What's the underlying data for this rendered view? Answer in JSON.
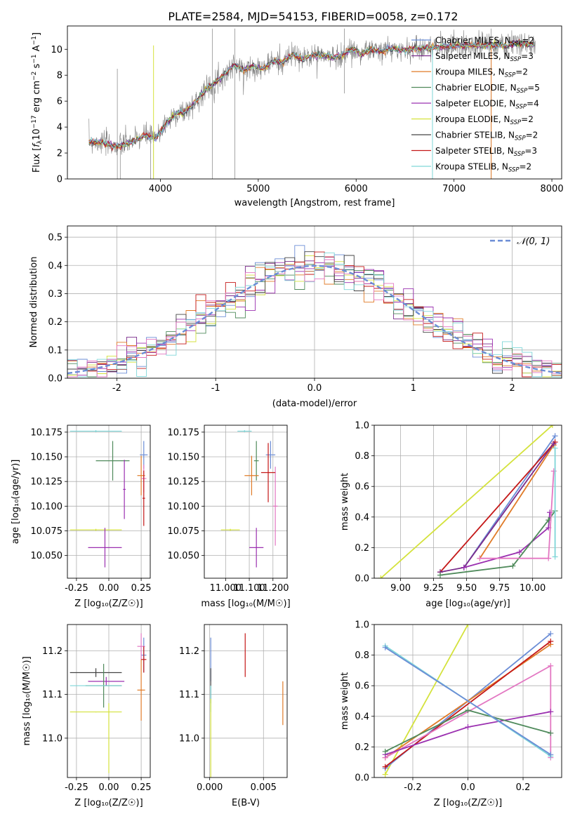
{
  "figure": {
    "title": "PLATE=2584, MJD=54153, FIBERID=0058, z=0.172"
  },
  "chart_data": [
    {
      "id": "spectrum",
      "type": "line",
      "title": "PLATE=2584, MJD=54153, FIBERID=0058, z=0.172",
      "xlabel": "wavelength [Angstrom, rest frame]",
      "ylabel": "Flux [f_λ 10^-17 erg cm^-2 s^-1 A^-1]",
      "xlim": [
        3050,
        8100
      ],
      "ylim": [
        0,
        11.8
      ],
      "xticks": [
        4000,
        5000,
        6000,
        7000,
        8000
      ],
      "yticks": [
        0,
        2,
        4,
        6,
        8,
        10
      ],
      "grid": false,
      "legend_position": "right",
      "legend": [
        {
          "label": "Chabrier MILES, N_SSP=2",
          "color": "#6b8dd6"
        },
        {
          "label": "Salpeter MILES, N_SSP=3",
          "color": "#7b2c8c"
        },
        {
          "label": "Kroupa MILES, N_SSP=2",
          "color": "#e07b28"
        },
        {
          "label": "Chabrier ELODIE, N_SSP=5",
          "color": "#4f8a5b"
        },
        {
          "label": "Salpeter ELODIE, N_SSP=4",
          "color": "#9b30b0"
        },
        {
          "label": "Kroupa ELODIE, N_SSP=2",
          "color": "#d4e23c"
        },
        {
          "label": "Chabrier STELIB, N_SSP=2",
          "color": "#444444"
        },
        {
          "label": "Salpeter STELIB, N_SSP=3",
          "color": "#c41818"
        },
        {
          "label": "Kroupa STELIB, N_SSP=2",
          "color": "#7fd6d8"
        }
      ],
      "continuum": [
        [
          3270,
          2.9
        ],
        [
          3400,
          2.8
        ],
        [
          3500,
          2.6
        ],
        [
          3560,
          2.5
        ],
        [
          3650,
          2.7
        ],
        [
          3750,
          3.0
        ],
        [
          3850,
          3.4
        ],
        [
          3950,
          3.1
        ],
        [
          4050,
          4.2
        ],
        [
          4150,
          5.0
        ],
        [
          4250,
          5.2
        ],
        [
          4350,
          5.8
        ],
        [
          4450,
          6.8
        ],
        [
          4550,
          7.4
        ],
        [
          4650,
          8.0
        ],
        [
          4750,
          8.8
        ],
        [
          4850,
          8.4
        ],
        [
          4950,
          8.7
        ],
        [
          5050,
          8.5
        ],
        [
          5150,
          9.1
        ],
        [
          5250,
          9.0
        ],
        [
          5350,
          9.6
        ],
        [
          5450,
          9.2
        ],
        [
          5550,
          9.6
        ],
        [
          5650,
          9.5
        ],
        [
          5750,
          9.4
        ],
        [
          5850,
          9.5
        ],
        [
          5950,
          10.0
        ],
        [
          6050,
          9.7
        ],
        [
          6150,
          10.0
        ],
        [
          6250,
          9.8
        ],
        [
          6350,
          10.1
        ],
        [
          6450,
          9.9
        ],
        [
          6550,
          10.0
        ],
        [
          6650,
          10.1
        ],
        [
          6750,
          10.1
        ],
        [
          6850,
          10.2
        ],
        [
          6950,
          10.2
        ],
        [
          7050,
          10.3
        ],
        [
          7150,
          10.3
        ],
        [
          7250,
          10.3
        ],
        [
          7350,
          10.3
        ],
        [
          7450,
          10.3
        ],
        [
          7550,
          10.3
        ],
        [
          7650,
          10.4
        ],
        [
          7750,
          10.4
        ],
        [
          7830,
          10.4
        ]
      ]
    },
    {
      "id": "residuals",
      "type": "line",
      "xlabel": "(data-model)/error",
      "ylabel": "Normed distribution",
      "xlim": [
        -2.5,
        2.5
      ],
      "ylim": [
        0,
        0.54
      ],
      "xticks": [
        -2,
        -1,
        0,
        1,
        2
      ],
      "yticks": [
        0.0,
        0.1,
        0.2,
        0.3,
        0.4,
        0.5
      ],
      "grid": true,
      "legend_position": "top-right",
      "legend": [
        {
          "label": "𝒩(0, 1)",
          "color": "#6b8dd6"
        }
      ],
      "bin_width": 0.1
    },
    {
      "id": "age-vs-Z",
      "type": "scatter",
      "xlabel": "Z [log₁₀(Z/Z☉)]",
      "ylabel": "age  [log₁₀(age/yr)]",
      "xlim": [
        -0.32,
        0.32
      ],
      "ylim": [
        10.027,
        10.182
      ],
      "xticks": [
        -0.25,
        0.0,
        0.25
      ],
      "yticks": [
        10.05,
        10.075,
        10.1,
        10.125,
        10.15,
        10.175
      ],
      "grid": true,
      "points": [
        {
          "x": 0.27,
          "y": 10.152,
          "xerr": 0.03,
          "yerr": 0.014,
          "color": "#6b8dd6"
        },
        {
          "x": 0.03,
          "y": 10.146,
          "xerr": 0.13,
          "yerr": 0.02,
          "color": "#4f8a5b"
        },
        {
          "x": 0.25,
          "y": 10.131,
          "xerr": 0.03,
          "yerr": 0.02,
          "color": "#e07b28"
        },
        {
          "x": 0.27,
          "y": 10.128,
          "xerr": 0.02,
          "yerr": 0.014,
          "color": "#e377c2"
        },
        {
          "x": 0.12,
          "y": 10.117,
          "xerr": 0.01,
          "yerr": 0.03,
          "color": "#9b30b0"
        },
        {
          "x": 0.27,
          "y": 10.108,
          "xerr": 0.01,
          "yerr": 0.028,
          "color": "#c41818"
        },
        {
          "x": -0.1,
          "y": 10.176,
          "xerr": 0.2,
          "yerr": 0.001,
          "color": "#7fd6d8"
        },
        {
          "x": -0.1,
          "y": 10.076,
          "xerr": 0.2,
          "yerr": 0.001,
          "color": "#d4e23c"
        },
        {
          "x": -0.03,
          "y": 10.058,
          "xerr": 0.13,
          "yerr": 0.02,
          "color": "#9b30b0"
        }
      ]
    },
    {
      "id": "age-vs-mass",
      "type": "scatter",
      "xlabel": "mass [log₁₀(M/M☉)]",
      "ylabel": "",
      "xlim": [
        10.91,
        11.26
      ],
      "ylim": [
        10.027,
        10.182
      ],
      "xticks": [
        11.0,
        11.1,
        11.2
      ],
      "yticks": [
        10.05,
        10.075,
        10.1,
        10.125,
        10.15,
        10.175
      ],
      "grid": true,
      "points": [
        {
          "x": 11.19,
          "y": 10.152,
          "xerr": 0.02,
          "yerr": 0.014,
          "color": "#6b8dd6"
        },
        {
          "x": 11.13,
          "y": 10.146,
          "xerr": 0.01,
          "yerr": 0.02,
          "color": "#4f8a5b"
        },
        {
          "x": 11.11,
          "y": 10.131,
          "xerr": 0.03,
          "yerr": 0.02,
          "color": "#e07b28"
        },
        {
          "x": 11.21,
          "y": 10.1,
          "xerr": 0.01,
          "yerr": 0.04,
          "color": "#e377c2"
        },
        {
          "x": 11.18,
          "y": 10.134,
          "xerr": 0.03,
          "yerr": 0.03,
          "color": "#c41818"
        },
        {
          "x": 11.13,
          "y": 10.058,
          "xerr": 0.03,
          "yerr": 0.02,
          "color": "#9b30b0"
        },
        {
          "x": 11.08,
          "y": 10.176,
          "xerr": 0.03,
          "yerr": 0.001,
          "color": "#7fd6d8"
        },
        {
          "x": 11.02,
          "y": 10.076,
          "xerr": 0.04,
          "yerr": 0.001,
          "color": "#d4e23c"
        }
      ]
    },
    {
      "id": "mass-weight-vs-age",
      "type": "line",
      "xlabel": "age  [log₁₀(age/yr)]",
      "ylabel": "mass weight",
      "xlim": [
        8.8,
        10.22
      ],
      "ylim": [
        0,
        1.0
      ],
      "xticks": [
        9.0,
        9.25,
        9.5,
        9.75,
        10.0
      ],
      "yticks": [
        0.0,
        0.2,
        0.4,
        0.6,
        0.8,
        1.0
      ],
      "grid": true,
      "series": [
        {
          "color": "#d4e23c",
          "points": [
            [
              8.85,
              0.0
            ],
            [
              10.15,
              1.0
            ]
          ]
        },
        {
          "color": "#6b8dd6",
          "points": [
            [
              9.48,
              0.07
            ],
            [
              10.17,
              0.93
            ]
          ]
        },
        {
          "color": "#e07b28",
          "points": [
            [
              9.6,
              0.13
            ],
            [
              10.16,
              0.87
            ]
          ]
        },
        {
          "color": "#c41818",
          "points": [
            [
              9.3,
              0.04
            ],
            [
              10.17,
              0.89
            ]
          ]
        },
        {
          "color": "#7b2c8c",
          "points": [
            [
              9.3,
              0.04
            ],
            [
              9.48,
              0.07
            ],
            [
              10.16,
              0.88
            ]
          ]
        },
        {
          "color": "#9b30b0",
          "points": [
            [
              9.48,
              0.07
            ],
            [
              9.9,
              0.17
            ],
            [
              10.12,
              0.33
            ],
            [
              10.13,
              0.43
            ]
          ]
        },
        {
          "color": "#4f8a5b",
          "points": [
            [
              9.3,
              0.02
            ],
            [
              9.85,
              0.08
            ],
            [
              10.12,
              0.38
            ],
            [
              10.17,
              0.44
            ]
          ]
        },
        {
          "color": "#e377c2",
          "points": [
            [
              9.6,
              0.13
            ],
            [
              10.12,
              0.13
            ],
            [
              10.16,
              0.7
            ]
          ]
        },
        {
          "color": "#7fd6d8",
          "points": [
            [
              10.17,
              0.14
            ],
            [
              10.17,
              0.85
            ]
          ]
        }
      ]
    },
    {
      "id": "mass-vs-Z",
      "type": "scatter",
      "xlabel": "Z [log₁₀(Z/Z☉)]",
      "ylabel": "mass [log₁₀(M/M☉)]",
      "xlim": [
        -0.32,
        0.32
      ],
      "ylim": [
        10.91,
        11.26
      ],
      "xticks": [
        -0.25,
        0.0,
        0.25
      ],
      "yticks": [
        11.0,
        11.1,
        11.2
      ],
      "grid": true,
      "points": [
        {
          "x": 0.27,
          "y": 11.19,
          "xerr": 0.02,
          "yerr": 0.04,
          "color": "#6b8dd6"
        },
        {
          "x": 0.25,
          "y": 11.21,
          "xerr": 0.03,
          "yerr": 0.03,
          "color": "#e377c2"
        },
        {
          "x": 0.27,
          "y": 11.18,
          "xerr": 0.02,
          "yerr": 0.03,
          "color": "#c41818"
        },
        {
          "x": 0.25,
          "y": 11.11,
          "xerr": 0.03,
          "yerr": 0.07,
          "color": "#e07b28"
        },
        {
          "x": -0.1,
          "y": 11.15,
          "xerr": 0.2,
          "yerr": 0.01,
          "color": "#444444"
        },
        {
          "x": -0.02,
          "y": 11.13,
          "xerr": 0.14,
          "yerr": 0.01,
          "color": "#9b30b0"
        },
        {
          "x": -0.04,
          "y": 11.12,
          "xerr": 0.14,
          "yerr": 0.05,
          "color": "#4f8a5b"
        },
        {
          "x": -0.1,
          "y": 11.12,
          "xerr": 0.2,
          "yerr": 0.001,
          "color": "#7fd6d8"
        },
        {
          "x": -0.1,
          "y": 11.06,
          "xerr": 0.2,
          "yerr": 0.001,
          "color": "#d4e23c"
        },
        {
          "x": 0.0,
          "y": 11.0,
          "xerr": 0.001,
          "yerr": 0.08,
          "color": "#d4e23c"
        }
      ]
    },
    {
      "id": "mass-vs-EBV",
      "type": "scatter",
      "xlabel": "E(B-V)",
      "ylabel": "",
      "xlim": [
        -0.0005,
        0.0072
      ],
      "ylim": [
        10.91,
        11.26
      ],
      "xticks": [
        0.0,
        0.005
      ],
      "yticks": [
        11.0,
        11.1,
        11.2
      ],
      "grid": true,
      "points": [
        {
          "x": 0.0001,
          "y": 11.18,
          "xerr": 0.0,
          "yerr": 0.05,
          "color": "#6b8dd6"
        },
        {
          "x": 0.0001,
          "y": 11.12,
          "xerr": 0.0,
          "yerr": 0.04,
          "color": "#444444"
        },
        {
          "x": 0.0001,
          "y": 11.09,
          "xerr": 0.0,
          "yerr": 0.03,
          "color": "#7fd6d8"
        },
        {
          "x": 0.0001,
          "y": 11.0,
          "xerr": 0.0,
          "yerr": 0.09,
          "color": "#d4e23c"
        },
        {
          "x": 0.0033,
          "y": 11.19,
          "xerr": 0.0,
          "yerr": 0.05,
          "color": "#c41818"
        },
        {
          "x": 0.0068,
          "y": 11.08,
          "xerr": 0.0,
          "yerr": 0.05,
          "color": "#e07b28"
        }
      ]
    },
    {
      "id": "mass-weight-vs-Z",
      "type": "line",
      "xlabel": "Z [log₁₀(Z/Z☉)]",
      "ylabel": "mass weight",
      "xlim": [
        -0.34,
        0.34
      ],
      "ylim": [
        0,
        1.0
      ],
      "xticks": [
        -0.2,
        0.0,
        0.2
      ],
      "yticks": [
        0.0,
        0.2,
        0.4,
        0.6,
        0.8,
        1.0
      ],
      "grid": true,
      "series": [
        {
          "color": "#d4e23c",
          "points": [
            [
              -0.3,
              0.02
            ],
            [
              0.0,
              1.0
            ]
          ]
        },
        {
          "color": "#6b8dd6",
          "points": [
            [
              -0.3,
              0.06
            ],
            [
              0.3,
              0.94
            ]
          ]
        },
        {
          "color": "#e07b28",
          "points": [
            [
              -0.3,
              0.13
            ],
            [
              0.3,
              0.87
            ]
          ]
        },
        {
          "color": "#c41818",
          "points": [
            [
              -0.3,
              0.07
            ],
            [
              0.3,
              0.89
            ]
          ]
        },
        {
          "color": "#e377c2",
          "points": [
            [
              -0.3,
              0.13
            ],
            [
              0.3,
              0.73
            ],
            [
              0.3,
              0.13
            ]
          ]
        },
        {
          "color": "#9b30b0",
          "points": [
            [
              -0.3,
              0.15
            ],
            [
              0.0,
              0.33
            ],
            [
              0.3,
              0.43
            ]
          ]
        },
        {
          "color": "#4f8a5b",
          "points": [
            [
              -0.3,
              0.17
            ],
            [
              0.0,
              0.44
            ],
            [
              0.3,
              0.29
            ]
          ]
        },
        {
          "color": "#7fd6d8",
          "points": [
            [
              -0.3,
              0.86
            ],
            [
              0.3,
              0.14
            ]
          ]
        },
        {
          "color": "#6b8dd6",
          "points": [
            [
              -0.3,
              0.85
            ],
            [
              0.3,
              0.15
            ]
          ]
        }
      ]
    }
  ]
}
